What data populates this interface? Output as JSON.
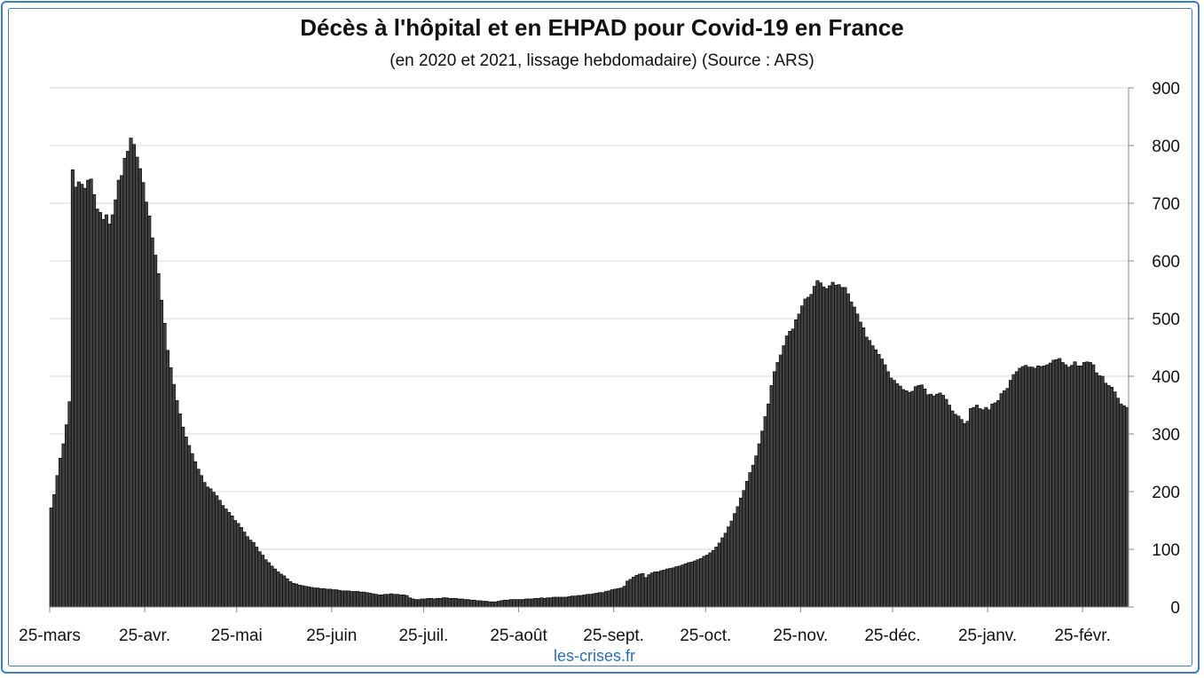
{
  "colors": {
    "bar": "#404040",
    "bar_outline": "#000000",
    "grid": "#d9d9d9",
    "frame": "#3d7dc0",
    "source": "#2a6db8"
  },
  "chart_data": {
    "type": "bar",
    "title": "Décès à l'hôpital et en EHPAD pour Covid-19 en France",
    "subtitle": "(en 2020 et 2021, lissage hebdomadaire) (Source : ARS)",
    "source_credit": "les-crises.fr",
    "y_axis_position": "right",
    "ylim": [
      0,
      900
    ],
    "y_ticks": [
      0,
      100,
      200,
      300,
      400,
      500,
      600,
      700,
      800,
      900
    ],
    "grid": true,
    "x_tick_labels": [
      "25-mars",
      "25-avr.",
      "25-mai",
      "25-juin",
      "25-juil.",
      "25-août",
      "25-sept.",
      "25-oct.",
      "25-nov.",
      "25-déc.",
      "25-janv.",
      "25-févr."
    ],
    "x_start": "2020-03-25",
    "values": [
      172,
      195,
      228,
      258,
      283,
      316,
      356,
      758,
      728,
      737,
      733,
      726,
      740,
      742,
      715,
      690,
      684,
      672,
      680,
      664,
      680,
      706,
      740,
      748,
      778,
      790,
      813,
      802,
      780,
      760,
      736,
      702,
      678,
      640,
      610,
      578,
      532,
      492,
      445,
      415,
      386,
      358,
      335,
      312,
      295,
      280,
      266,
      252,
      239,
      228,
      216,
      208,
      205,
      199,
      193,
      185,
      176,
      170,
      164,
      158,
      150,
      145,
      138,
      130,
      122,
      116,
      112,
      104,
      96,
      90,
      82,
      77,
      71,
      66,
      61,
      57,
      54,
      49,
      44,
      41,
      40,
      38,
      37,
      36,
      35,
      34,
      33,
      33,
      32,
      32,
      31,
      31,
      30,
      30,
      29,
      28,
      28,
      28,
      27,
      27,
      27,
      26,
      26,
      25,
      24,
      23,
      22,
      21,
      21,
      22,
      22,
      23,
      22,
      22,
      21,
      21,
      20,
      16,
      14,
      13,
      13,
      14,
      14,
      15,
      15,
      14,
      15,
      15,
      16,
      16,
      15,
      15,
      15,
      14,
      14,
      13,
      13,
      12,
      12,
      11,
      11,
      10,
      10,
      9,
      9,
      9,
      10,
      11,
      12,
      12,
      13,
      13,
      13,
      13,
      13,
      14,
      14,
      14,
      15,
      15,
      16,
      15,
      16,
      16,
      17,
      17,
      17,
      17,
      17,
      18,
      19,
      19,
      20,
      20,
      21,
      22,
      22,
      23,
      24,
      25,
      25,
      27,
      28,
      30,
      31,
      32,
      33,
      36,
      45,
      48,
      52,
      55,
      57,
      58,
      51,
      56,
      59,
      61,
      61,
      63,
      64,
      66,
      67,
      68,
      70,
      71,
      73,
      75,
      77,
      78,
      80,
      82,
      84,
      88,
      90,
      94,
      98,
      104,
      111,
      120,
      128,
      139,
      149,
      162,
      174,
      189,
      202,
      218,
      233,
      246,
      262,
      283,
      305,
      330,
      352,
      384,
      408,
      424,
      437,
      453,
      470,
      478,
      482,
      498,
      508,
      522,
      534,
      537,
      542,
      556,
      566,
      562,
      555,
      552,
      557,
      563,
      558,
      559,
      554,
      554,
      543,
      529,
      520,
      508,
      494,
      484,
      468,
      462,
      453,
      446,
      438,
      430,
      420,
      408,
      397,
      393,
      387,
      383,
      377,
      375,
      372,
      374,
      382,
      384,
      385,
      378,
      368,
      369,
      366,
      369,
      371,
      367,
      360,
      350,
      340,
      334,
      331,
      325,
      318,
      322,
      344,
      346,
      350,
      344,
      342,
      346,
      342,
      352,
      354,
      358,
      370,
      375,
      379,
      393,
      403,
      408,
      414,
      417,
      419,
      416,
      416,
      414,
      418,
      417,
      418,
      420,
      423,
      428,
      429,
      431,
      424,
      420,
      416,
      419,
      425,
      418,
      418,
      424,
      425,
      424,
      420,
      406,
      401,
      400,
      388,
      384,
      381,
      373,
      362,
      352,
      349,
      346
    ]
  }
}
